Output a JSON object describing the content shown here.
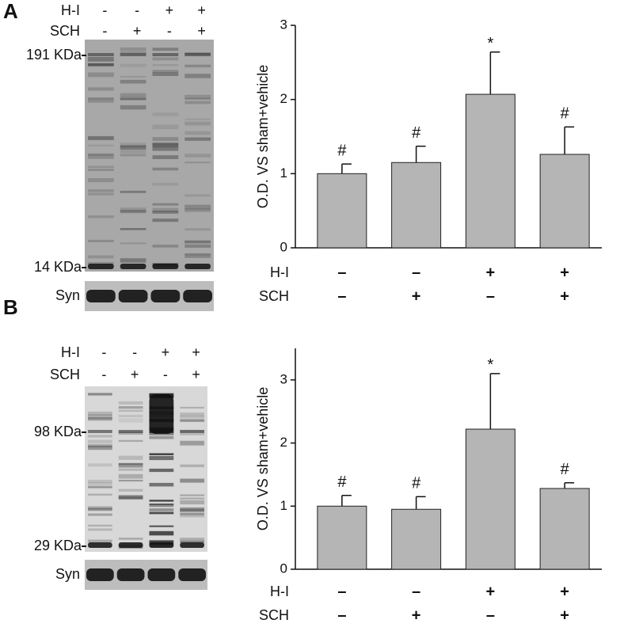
{
  "chart_data": [
    {
      "type": "bar",
      "panel": "A",
      "ylabel": "O.D. VS sham+vehicle",
      "values": [
        1.0,
        1.15,
        2.07,
        1.26
      ],
      "errors": [
        0.13,
        0.22,
        0.57,
        0.37
      ],
      "annotations": [
        "#",
        "#",
        "*",
        "#"
      ],
      "conditions": [
        {
          "name": "H-I",
          "values": [
            "–",
            "–",
            "+",
            "+"
          ]
        },
        {
          "name": "SCH",
          "values": [
            "–",
            "+",
            "–",
            "+"
          ]
        }
      ],
      "color": "#b5b5b5",
      "ylim": [
        0,
        3
      ],
      "yticks": [
        0,
        1,
        2,
        3
      ],
      "blot": {
        "rows": [
          {
            "name": "H-I",
            "values": [
              "-",
              "-",
              "+",
              "+"
            ]
          },
          {
            "name": "SCH",
            "values": [
              "-",
              "+",
              "-",
              "+"
            ]
          }
        ],
        "markers": [
          "191 KDa",
          "14 KDa"
        ],
        "loading": "Syn"
      }
    },
    {
      "type": "bar",
      "panel": "B",
      "ylabel": "O.D. VS sham+vehicle",
      "values": [
        1.0,
        0.95,
        2.22,
        1.28
      ],
      "errors": [
        0.17,
        0.2,
        0.88,
        0.09
      ],
      "annotations": [
        "#",
        "#",
        "*",
        "#"
      ],
      "conditions": [
        {
          "name": "H-I",
          "values": [
            "–",
            "–",
            "+",
            "+"
          ]
        },
        {
          "name": "SCH",
          "values": [
            "–",
            "+",
            "–",
            "+"
          ]
        }
      ],
      "color": "#b5b5b5",
      "ylim": [
        0,
        3.5
      ],
      "yticks": [
        0,
        1,
        2,
        3
      ],
      "blot": {
        "rows": [
          {
            "name": "H-I",
            "values": [
              "-",
              "-",
              "+",
              "+"
            ]
          },
          {
            "name": "SCH",
            "values": [
              "-",
              "+",
              "-",
              "+"
            ]
          }
        ],
        "markers": [
          "98 KDa",
          "29 KDa"
        ],
        "loading": "Syn"
      }
    }
  ]
}
